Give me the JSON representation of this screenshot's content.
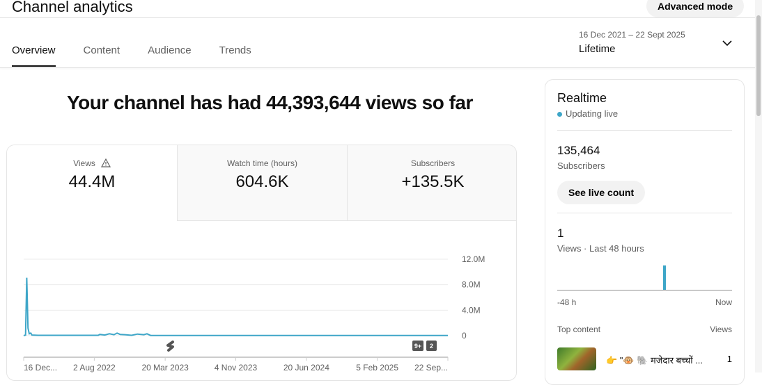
{
  "header": {
    "title": "Channel analytics",
    "advanced_mode": "Advanced mode",
    "tabs": [
      {
        "label": "Overview",
        "active": true
      },
      {
        "label": "Content"
      },
      {
        "label": "Audience"
      },
      {
        "label": "Trends"
      }
    ],
    "date_range": "16 Dec 2021 – 22 Sept 2025",
    "period": "Lifetime"
  },
  "headline": "Your channel has had 44,393,644 views so far",
  "metrics": [
    {
      "label": "Views",
      "value": "44.4M",
      "icon": "warning-icon"
    },
    {
      "label": "Watch time (hours)",
      "value": "604.6K"
    },
    {
      "label": "Subscribers",
      "value": "+135.5K"
    }
  ],
  "chart_data": {
    "type": "line",
    "color": "#3ea6c8",
    "ylim": [
      0,
      12000000
    ],
    "yticks": [
      "0",
      "4.0M",
      "8.0M",
      "12.0M"
    ],
    "ytick_values": [
      0,
      4000000,
      8000000,
      12000000
    ],
    "xticks": [
      "16 Dec...",
      "2 Aug 2022",
      "20 Mar 2023",
      "4 Nov 2023",
      "20 Jun 2024",
      "5 Feb 2025",
      "22 Sep..."
    ],
    "xtick_dates": [
      "2021-12-16",
      "2022-08-02",
      "2023-03-20",
      "2023-11-04",
      "2024-06-20",
      "2025-02-05",
      "2025-09-22"
    ],
    "series": [
      {
        "points": [
          [
            "2021-12-16",
            0
          ],
          [
            "2021-12-22",
            100000
          ],
          [
            "2021-12-26",
            9100000
          ],
          [
            "2021-12-30",
            1200000
          ],
          [
            "2022-01-03",
            300000
          ],
          [
            "2022-01-08",
            400000
          ],
          [
            "2022-01-12",
            100000
          ],
          [
            "2022-02-01",
            50000
          ],
          [
            "2022-08-15",
            50000
          ],
          [
            "2022-08-20",
            200000
          ],
          [
            "2022-09-05",
            100000
          ],
          [
            "2022-09-20",
            300000
          ],
          [
            "2022-10-05",
            150000
          ],
          [
            "2022-10-15",
            400000
          ],
          [
            "2022-10-25",
            200000
          ],
          [
            "2022-11-10",
            150000
          ],
          [
            "2022-12-01",
            50000
          ],
          [
            "2022-12-20",
            250000
          ],
          [
            "2023-01-10",
            150000
          ],
          [
            "2023-01-20",
            300000
          ],
          [
            "2023-02-01",
            30000
          ],
          [
            "2025-09-22",
            20000
          ]
        ]
      }
    ],
    "markers": [
      "shorts-icon",
      "9+",
      "2"
    ]
  },
  "realtime": {
    "title": "Realtime",
    "status": "Updating live",
    "subscribers": "135,464",
    "subscribers_label": "Subscribers",
    "live_button": "See live count",
    "views": "1",
    "views_label": "Views · Last 48 hours",
    "axis_start": "-48 h",
    "axis_end": "Now",
    "top_content_label": "Top content",
    "views_col": "Views",
    "top_items": [
      {
        "title": "👉 \"🐵 🐘 मजेदार बच्चों ...",
        "views": "1"
      }
    ],
    "accent": "#3ea6c8"
  }
}
